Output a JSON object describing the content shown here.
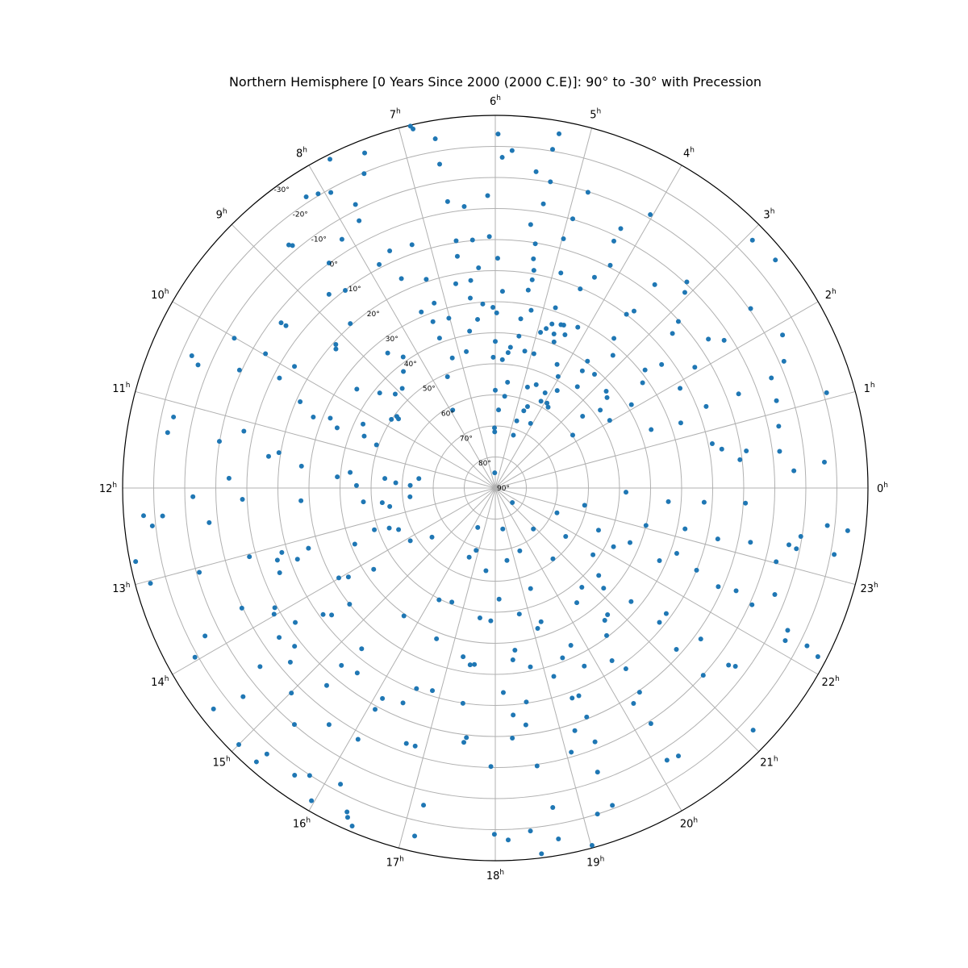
{
  "chart_data": {
    "type": "scatter",
    "projection": "polar",
    "title": "Northern Hemisphere [0 Years Since 2000 (2000 C.E)]: 90° to -30° with Precession",
    "hour_unit": "h",
    "hour_ticks": [
      "0",
      "1",
      "2",
      "3",
      "4",
      "5",
      "6",
      "7",
      "8",
      "9",
      "10",
      "11",
      "12",
      "13",
      "14",
      "15",
      "16",
      "17",
      "18",
      "19",
      "20",
      "21",
      "22",
      "23"
    ],
    "dec_ticks": [
      "90°",
      "80°",
      "70°",
      "60°",
      "50°",
      "40°",
      "30°",
      "20°",
      "10°",
      "0°",
      "-10°",
      "-20°",
      "-30°"
    ],
    "dec_range": [
      90,
      -30
    ],
    "grid": true,
    "marker_color": "#1f77b4",
    "points": [
      [
        0.22,
        -6.3
      ],
      [
        0.49,
        -2.3
      ],
      [
        0.3,
        -16.3
      ],
      [
        0.44,
        10.7
      ],
      [
        0.56,
        8.3
      ],
      [
        0.82,
        -3.4
      ],
      [
        0.65,
        16.0
      ],
      [
        0.77,
        18.7
      ],
      [
        1.07,
        -21.0
      ],
      [
        1.15,
        -4.8
      ],
      [
        1.45,
        -5.7
      ],
      [
        1.58,
        -11.5
      ],
      [
        1.41,
        6.0
      ],
      [
        1.41,
        17.2
      ],
      [
        1.29,
        26.7
      ],
      [
        1.37,
        36.4
      ],
      [
        1.87,
        -14.8
      ],
      [
        2.34,
        -10.5
      ],
      [
        2.19,
        2.3
      ],
      [
        2.33,
        6.3
      ],
      [
        2.08,
        14.9
      ],
      [
        1.89,
        22.4
      ],
      [
        2.61,
        -26.3
      ],
      [
        2.93,
        -25.0
      ],
      [
        3.14,
        -0.6
      ],
      [
        3.06,
        2.3
      ],
      [
        2.82,
        10.3
      ],
      [
        2.74,
        14.3
      ],
      [
        2.44,
        23.3
      ],
      [
        2.55,
        28.6
      ],
      [
        2.37,
        31.7
      ],
      [
        2.1,
        38.6
      ],
      [
        2.6,
        43.7
      ],
      [
        2.74,
        42.6
      ],
      [
        2.04,
        47.2
      ],
      [
        2.44,
        47.9
      ],
      [
        2.63,
        53.6
      ],
      [
        2.29,
        59.8
      ],
      [
        3.46,
        6.8
      ],
      [
        3.46,
        17.6
      ],
      [
        3.53,
        19.9
      ],
      [
        3.44,
        28.5
      ],
      [
        3.23,
        32.9
      ],
      [
        3.26,
        41.4
      ],
      [
        3.56,
        43.0
      ],
      [
        3.4,
        48.0
      ],
      [
        3.6,
        39.5
      ],
      [
        3.84,
        52.8
      ],
      [
        3.79,
        58.9
      ],
      [
        3.91,
        58.0
      ],
      [
        4.03,
        -11.2
      ],
      [
        4.28,
        -2.8
      ],
      [
        4.29,
        1.8
      ],
      [
        4.18,
        9.3
      ],
      [
        4.32,
        15.0
      ],
      [
        4.46,
        20.3
      ],
      [
        4.19,
        31.8
      ],
      [
        4.48,
        33.1
      ],
      [
        4.61,
        36.9
      ],
      [
        4.54,
        33.3
      ],
      [
        4.37,
        35.8
      ],
      [
        4.54,
        39.3
      ],
      [
        4.23,
        45.5
      ],
      [
        4.04,
        48.8
      ],
      [
        4.16,
        55.4
      ],
      [
        4.56,
        54.2
      ],
      [
        4.15,
        58.4
      ],
      [
        4.56,
        61.8
      ],
      [
        4.65,
        63.5
      ],
      [
        4.09,
        66.3
      ],
      [
        4.84,
        -9.8
      ],
      [
        4.93,
        -0.2
      ],
      [
        4.98,
        6.8
      ],
      [
        4.87,
        17.6
      ],
      [
        4.77,
        28.8
      ],
      [
        4.73,
        34.1
      ],
      [
        4.82,
        36.1
      ],
      [
        4.92,
        37.8
      ],
      [
        4.93,
        45.0
      ],
      [
        4.82,
        55.9
      ],
      [
        4.82,
        67.3
      ],
      [
        4.74,
        72.0
      ],
      [
        5.32,
        -25.9
      ],
      [
        5.36,
        -20.6
      ],
      [
        5.32,
        -10.2
      ],
      [
        5.51,
        -12.7
      ],
      [
        5.36,
        -2.8
      ],
      [
        5.49,
        4.4
      ],
      [
        5.38,
        10.3
      ],
      [
        5.37,
        15.2
      ],
      [
        5.33,
        18.8
      ],
      [
        5.33,
        21.9
      ],
      [
        5.37,
        25.4
      ],
      [
        5.24,
        31.6
      ],
      [
        5.43,
        34.9
      ],
      [
        5.41,
        40.5
      ],
      [
        5.59,
        44.4
      ],
      [
        5.19,
        44.9
      ],
      [
        5.64,
        46.2
      ],
      [
        5.56,
        55.7
      ],
      [
        5.79,
        48.6
      ],
      [
        5.61,
        60.3
      ],
      [
        5.97,
        -24.0
      ],
      [
        5.81,
        -18.8
      ],
      [
        5.92,
        -16.5
      ],
      [
        6.1,
        -4.2
      ],
      [
        6.09,
        9.0
      ],
      [
        5.96,
        16.0
      ],
      [
        5.86,
        26.6
      ],
      [
        6.05,
        31.8
      ],
      [
        5.97,
        33.6
      ],
      [
        6.0,
        42.8
      ],
      [
        6.06,
        47.9
      ],
      [
        6.0,
        58.5
      ],
      [
        5.84,
        64.8
      ],
      [
        6.04,
        71.9
      ],
      [
        6.05,
        70.6
      ],
      [
        6.14,
        85.1
      ],
      [
        6.86,
        -28.6
      ],
      [
        6.88,
        -29.7
      ],
      [
        6.65,
        -24.1
      ],
      [
        6.65,
        -15.8
      ],
      [
        6.63,
        -3.5
      ],
      [
        6.42,
        -1.2
      ],
      [
        6.35,
        9.8
      ],
      [
        6.6,
        9.4
      ],
      [
        6.62,
        14.4
      ],
      [
        6.29,
        18.9
      ],
      [
        6.73,
        23.0
      ],
      [
        6.45,
        22.7
      ],
      [
        6.5,
        28.3
      ],
      [
        6.26,
        30.6
      ],
      [
        6.4,
        35.4
      ],
      [
        6.62,
        38.8
      ],
      [
        6.8,
        45.1
      ],
      [
        7.42,
        -25.8
      ],
      [
        7.78,
        -28.5
      ],
      [
        7.51,
        -19.7
      ],
      [
        8.07,
        -20.6
      ],
      [
        7.94,
        -18.9
      ],
      [
        7.75,
        -11.8
      ],
      [
        7.8,
        -6.6
      ],
      [
        8.11,
        -4.1
      ],
      [
        7.6,
        6.4
      ],
      [
        7.26,
        7.2
      ],
      [
        7.83,
        8.9
      ],
      [
        7.61,
        16.1
      ],
      [
        7.22,
        19.2
      ],
      [
        7.22,
        27.3
      ],
      [
        7.52,
        28.5
      ],
      [
        7.02,
        33.3
      ],
      [
        7.37,
        32.8
      ],
      [
        7.36,
        38.5
      ],
      [
        7.22,
        45.9
      ],
      [
        7.55,
        51.0
      ],
      [
        7.91,
        61.4
      ],
      [
        8.2,
        -21.8
      ],
      [
        8.66,
        -11.8
      ],
      [
        8.69,
        -12.7
      ],
      [
        8.43,
        -0.1
      ],
      [
        8.71,
        7.8
      ],
      [
        8.48,
        10.1
      ],
      [
        8.76,
        19.4
      ],
      [
        8.57,
        34.4
      ],
      [
        8.34,
        38.4
      ],
      [
        8.55,
        42.2
      ],
      [
        8.87,
        46.1
      ],
      [
        9.12,
        45.8
      ],
      [
        9.49,
        2.9
      ],
      [
        9.48,
        4.7
      ],
      [
        9.2,
        20.9
      ],
      [
        9.26,
        21.9
      ],
      [
        9.63,
        35.2
      ],
      [
        9.37,
        41.8
      ],
      [
        9.63,
        51.7
      ],
      [
        9.77,
        49.9
      ],
      [
        9.6,
        50.8
      ],
      [
        10.01,
        -6.9
      ],
      [
        9.98,
        4.3
      ],
      [
        9.92,
        14.4
      ],
      [
        10.43,
        -16.6
      ],
      [
        10.5,
        -13.6
      ],
      [
        10.35,
        -0.7
      ],
      [
        10.2,
        12.0
      ],
      [
        10.41,
        21.3
      ],
      [
        10.58,
        27.1
      ],
      [
        10.47,
        32.3
      ],
      [
        10.61,
        35.5
      ],
      [
        10.28,
        42.7
      ],
      [
        10.56,
        44.6
      ],
      [
        10.67,
        49.3
      ],
      [
        11.17,
        -16.1
      ],
      [
        11.36,
        -17.0
      ],
      [
        11.36,
        -0.1
      ],
      [
        11.86,
        4.2
      ],
      [
        11.15,
        7.0
      ],
      [
        11.47,
        16.3
      ],
      [
        11.38,
        19.4
      ],
      [
        11.57,
        27.2
      ],
      [
        11.73,
        39.0
      ],
      [
        11.59,
        43.0
      ],
      [
        11.93,
        45.3
      ],
      [
        11.67,
        54.3
      ],
      [
        11.8,
        57.9
      ],
      [
        11.88,
        62.6
      ],
      [
        11.53,
        65.2
      ],
      [
        12.3,
        -23.6
      ],
      [
        12.32,
        -17.5
      ],
      [
        12.42,
        -21.1
      ],
      [
        12.11,
        -7.4
      ],
      [
        12.46,
        -2.8
      ],
      [
        12.17,
        8.5
      ],
      [
        12.25,
        27.3
      ],
      [
        12.4,
        47.3
      ],
      [
        12.49,
        53.3
      ],
      [
        12.66,
        55.5
      ],
      [
        12.39,
        62.4
      ],
      [
        12.77,
        -28.2
      ],
      [
        13.03,
        -25.2
      ],
      [
        13.06,
        -9.1
      ],
      [
        13.04,
        7.8
      ],
      [
        13.22,
        16.1
      ],
      [
        13.12,
        18.2
      ],
      [
        13.43,
        15.4
      ],
      [
        13.32,
        22.3
      ],
      [
        13.19,
        26.8
      ],
      [
        13.45,
        41.3
      ],
      [
        13.27,
        48.8
      ],
      [
        13.38,
        53.5
      ],
      [
        13.55,
        56.1
      ],
      [
        13.96,
        -21.0
      ],
      [
        13.8,
        -14.9
      ],
      [
        13.69,
        -0.3
      ],
      [
        13.98,
        8.0
      ],
      [
        13.9,
        9.2
      ],
      [
        13.99,
        31.9
      ],
      [
        14.08,
        34.7
      ],
      [
        14.12,
        57.8
      ],
      [
        14.54,
        -25.3
      ],
      [
        14.64,
        -15.4
      ],
      [
        14.48,
        -5.1
      ],
      [
        14.31,
        5.4
      ],
      [
        14.69,
        3.4
      ],
      [
        14.55,
        7.7
      ],
      [
        14.26,
        12.4
      ],
      [
        14.42,
        21.2
      ],
      [
        14.52,
        23.3
      ],
      [
        14.57,
        30.0
      ],
      [
        14.25,
        42.9
      ],
      [
        14.52,
        64.2
      ],
      [
        15.0,
        -26.8
      ],
      [
        15.26,
        -27.0
      ],
      [
        15.29,
        -22.9
      ],
      [
        15.67,
        -22.8
      ],
      [
        15.31,
        -9.9
      ],
      [
        15.01,
        -3.1
      ],
      [
        15.66,
        -3.1
      ],
      [
        15.3,
        6.4
      ],
      [
        15.27,
        14.4
      ],
      [
        15.55,
        15.7
      ],
      [
        15.35,
        22.7
      ],
      [
        15.63,
        39.4
      ],
      [
        15.97,
        -26.8
      ],
      [
        15.81,
        -20.2
      ],
      [
        16.36,
        -24.7
      ],
      [
        16.39,
        -26.2
      ],
      [
        16.16,
        -17.6
      ],
      [
        16.47,
        -28.2
      ],
      [
        16.09,
        -2.2
      ],
      [
        16.1,
        8.9
      ],
      [
        16.12,
        13.1
      ],
      [
        16.45,
        14.7
      ],
      [
        16.72,
        2.9
      ],
      [
        16.85,
        3.0
      ],
      [
        16.57,
        20.6
      ],
      [
        16.85,
        21.7
      ],
      [
        16.58,
        37.9
      ],
      [
        16.22,
        49.7
      ],
      [
        16.61,
        50.7
      ],
      [
        16.62,
        66.2
      ],
      [
        16.86,
        69.0
      ],
      [
        16.4,
        76.1
      ],
      [
        17.13,
        -25.0
      ],
      [
        17.15,
        -14.7
      ],
      [
        17.53,
        7.5
      ],
      [
        17.56,
        9.1
      ],
      [
        17.43,
        19.9
      ],
      [
        17.46,
        32.5
      ],
      [
        17.55,
        32.8
      ],
      [
        17.28,
        34.7
      ],
      [
        17.55,
        47.9
      ],
      [
        17.57,
        63.2
      ],
      [
        17.99,
        -21.5
      ],
      [
        17.94,
        0.3
      ],
      [
        18.14,
        -23.4
      ],
      [
        18.26,
        9.3
      ],
      [
        18.3,
        16.7
      ],
      [
        18.15,
        24.1
      ],
      [
        17.87,
        47.2
      ],
      [
        18.13,
        54.2
      ],
      [
        18.48,
        -28.7
      ],
      [
        18.68,
        -24.8
      ],
      [
        18.39,
        -21.0
      ],
      [
        18.68,
        -14.5
      ],
      [
        18.57,
        -0.5
      ],
      [
        18.49,
        13.1
      ],
      [
        18.55,
        20.4
      ],
      [
        18.39,
        34.4
      ],
      [
        18.74,
        31.3
      ],
      [
        18.46,
        37.4
      ],
      [
        18.72,
        48.7
      ],
      [
        18.61,
        66.4
      ],
      [
        18.69,
        76.6
      ],
      [
        19.01,
        -29.2
      ],
      [
        19.16,
        -20.0
      ],
      [
        19.35,
        -18.9
      ],
      [
        19.32,
        -7.2
      ],
      [
        19.07,
        1.5
      ],
      [
        19.43,
        2.2
      ],
      [
        19.21,
        7.8
      ],
      [
        19.45,
        10.6
      ],
      [
        19.34,
        18.0
      ],
      [
        19.46,
        17.9
      ],
      [
        19.15,
        26.5
      ],
      [
        19.44,
        31.2
      ],
      [
        19.77,
        25.9
      ],
      [
        19.71,
        33.8
      ],
      [
        19.12,
        42.8
      ],
      [
        19.26,
        44.5
      ],
      [
        19.29,
        55.7
      ],
      [
        19.42,
        68.3
      ],
      [
        20.15,
        -13.6
      ],
      [
        20.29,
        -14.5
      ],
      [
        20.23,
        -0.9
      ],
      [
        20.18,
        7.6
      ],
      [
        20.35,
        9.5
      ],
      [
        20.39,
        18.2
      ],
      [
        20.27,
        22.9
      ],
      [
        20.47,
        30.5
      ],
      [
        20.64,
        34.7
      ],
      [
        20.77,
        35.5
      ],
      [
        20.36,
        44.7
      ],
      [
        20.74,
        47.6
      ],
      [
        20.61,
        60.6
      ],
      [
        20.86,
        72.0
      ],
      [
        21.12,
        -23.9
      ],
      [
        21.2,
        -0.1
      ],
      [
        21.52,
        -4.3
      ],
      [
        21.56,
        -6.3
      ],
      [
        21.58,
        7.9
      ],
      [
        21.22,
        11.9
      ],
      [
        21.38,
        21.7
      ],
      [
        21.58,
        21.7
      ],
      [
        21.34,
        33.0
      ],
      [
        21.15,
        42.5
      ],
      [
        21.32,
        46.4
      ],
      [
        21.71,
        51.9
      ],
      [
        21.7,
        62.5
      ],
      [
        21.31,
        82.8
      ],
      [
        22.15,
        -15.5
      ],
      [
        22.16,
        -27.2
      ],
      [
        22.21,
        -22.5
      ],
      [
        22.27,
        -14.7
      ],
      [
        22.61,
        -6.3
      ],
      [
        22.37,
        -0.8
      ],
      [
        22.46,
        5.7
      ],
      [
        22.41,
        11.5
      ],
      [
        22.52,
        20.0
      ],
      [
        22.68,
        27.9
      ],
      [
        22.41,
        32.2
      ],
      [
        22.24,
        47.5
      ],
      [
        22.53,
        43.2
      ],
      [
        22.52,
        54.1
      ],
      [
        22.54,
        68.6
      ],
      [
        23.54,
        -24.3
      ],
      [
        23.57,
        -17.6
      ],
      [
        23.26,
        -21.2
      ],
      [
        23.24,
        -8.9
      ],
      [
        23.4,
        -9.6
      ],
      [
        23.27,
        -6.3
      ],
      [
        23.02,
        -3.5
      ],
      [
        23.2,
        6.0
      ],
      [
        23.14,
        16.5
      ],
      [
        23.19,
        27.5
      ],
      [
        23.07,
        40.0
      ],
      [
        23.77,
        9.3
      ],
      [
        23.74,
        22.6
      ],
      [
        23.7,
        34.1
      ],
      [
        23.88,
        47.9
      ],
      [
        23.27,
        60.7
      ]
    ]
  }
}
